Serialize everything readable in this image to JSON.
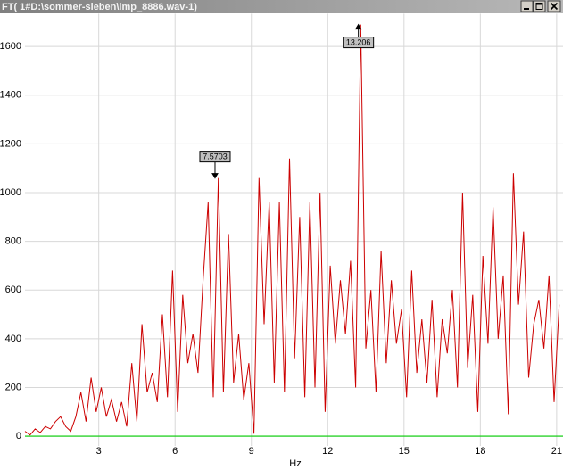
{
  "window": {
    "title": "FT( 1#D:\\sommer-sieben\\imp_8886.wav-1)"
  },
  "chart_data": {
    "type": "line",
    "x_label": "Hz",
    "x": [
      0.1,
      0.3,
      0.5,
      0.7,
      0.9,
      1.1,
      1.3,
      1.5,
      1.7,
      1.9,
      2.1,
      2.3,
      2.5,
      2.7,
      2.9,
      3.1,
      3.3,
      3.5,
      3.7,
      3.9,
      4.1,
      4.3,
      4.5,
      4.7,
      4.9,
      5.1,
      5.3,
      5.5,
      5.7,
      5.9,
      6.1,
      6.3,
      6.5,
      6.7,
      6.9,
      7.1,
      7.3,
      7.5,
      7.7,
      7.9,
      8.1,
      8.3,
      8.5,
      8.7,
      8.9,
      9.1,
      9.3,
      9.5,
      9.7,
      9.9,
      10.1,
      10.3,
      10.5,
      10.7,
      10.9,
      11.1,
      11.3,
      11.5,
      11.7,
      11.9,
      12.1,
      12.3,
      12.5,
      12.7,
      12.9,
      13.1,
      13.3,
      13.5,
      13.7,
      13.9,
      14.1,
      14.3,
      14.5,
      14.7,
      14.9,
      15.1,
      15.3,
      15.5,
      15.7,
      15.9,
      16.1,
      16.3,
      16.5,
      16.7,
      16.9,
      17.1,
      17.3,
      17.5,
      17.7,
      17.9,
      18.1,
      18.3,
      18.5,
      18.7,
      18.9,
      19.1,
      19.3,
      19.5,
      19.7,
      19.9,
      20.1,
      20.3,
      20.5,
      20.7,
      20.9,
      21.1
    ],
    "values": [
      20,
      5,
      30,
      15,
      40,
      30,
      60,
      80,
      40,
      20,
      80,
      180,
      60,
      240,
      100,
      200,
      80,
      150,
      60,
      140,
      40,
      300,
      60,
      460,
      180,
      260,
      140,
      500,
      160,
      680,
      100,
      580,
      300,
      420,
      260,
      640,
      960,
      160,
      1060,
      180,
      830,
      220,
      420,
      150,
      300,
      10,
      1060,
      460,
      960,
      220,
      960,
      180,
      1140,
      320,
      900,
      160,
      960,
      200,
      1000,
      100,
      700,
      380,
      640,
      420,
      720,
      200,
      1690,
      360,
      600,
      180,
      760,
      300,
      640,
      380,
      520,
      160,
      680,
      260,
      480,
      220,
      560,
      160,
      480,
      340,
      600,
      200,
      1000,
      280,
      580,
      100,
      740,
      380,
      940,
      400,
      660,
      90,
      1080,
      540,
      840,
      240,
      460,
      560,
      360,
      660,
      140,
      540
    ],
    "color": "#cc0000",
    "zero_line_color": "#00cc00",
    "grid": true,
    "xlim": [
      0.1,
      21.25
    ],
    "ylim": [
      -40,
      1720
    ],
    "xticks": [
      3,
      6,
      9,
      12,
      15,
      18,
      21
    ],
    "yticks": [
      0,
      200,
      400,
      600,
      800,
      1000,
      1200,
      1400,
      1600
    ],
    "annotations": [
      {
        "label": "7.5703",
        "x": 7.5703,
        "y": 1060
      },
      {
        "label": "13.206",
        "x": 13.206,
        "y": 1690
      }
    ]
  }
}
